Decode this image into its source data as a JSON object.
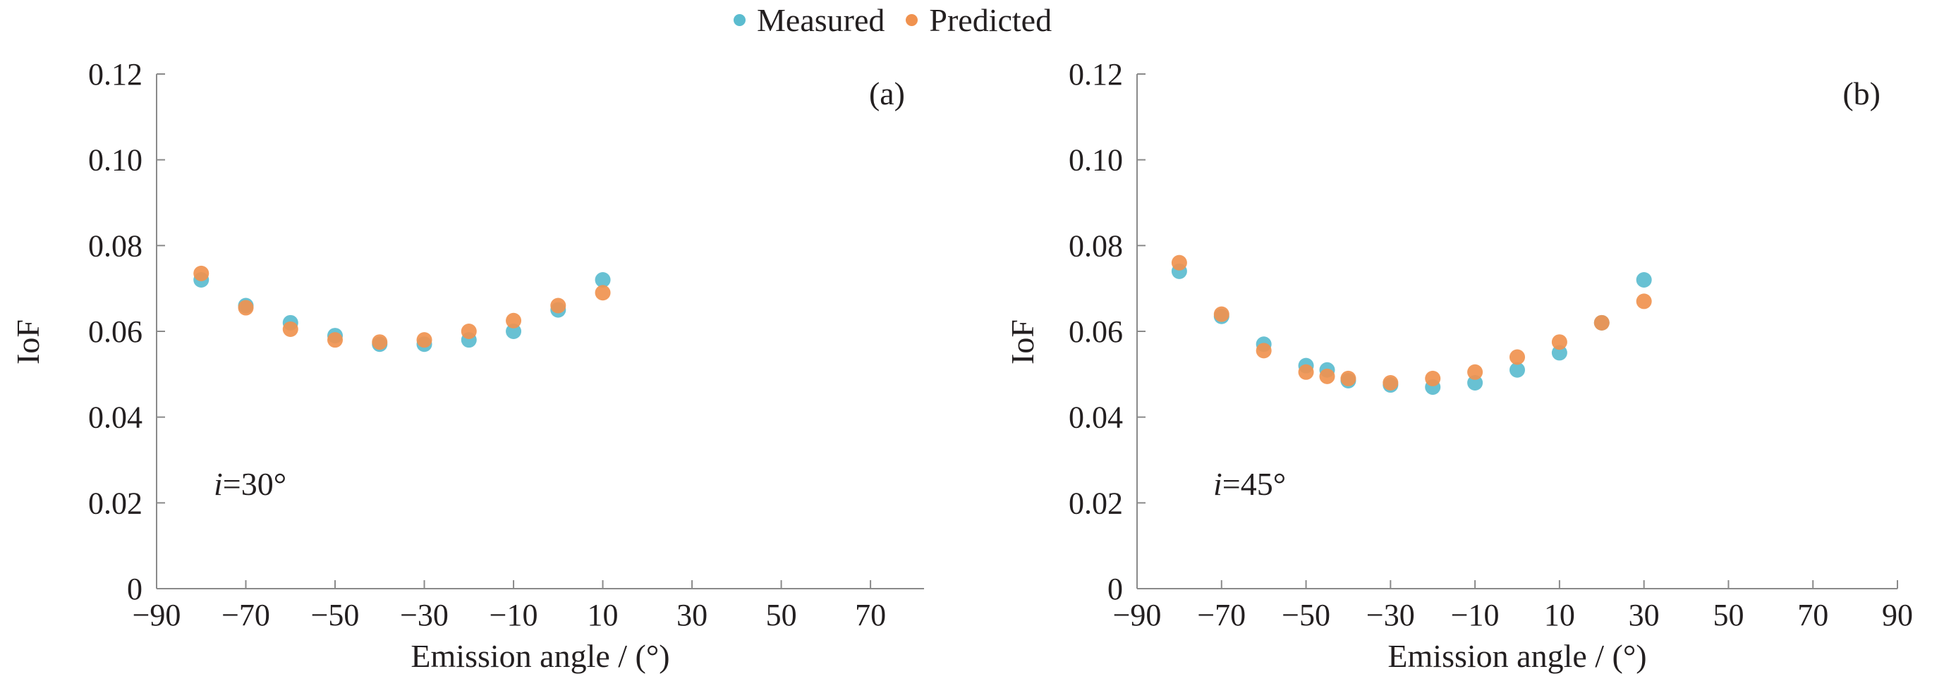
{
  "legend": {
    "measured_label": "Measured",
    "predicted_label": "Predicted",
    "measured_color": "#5bbccf",
    "predicted_color": "#f0924f"
  },
  "chart_data": [
    {
      "type": "scatter",
      "panel_label": "(a)",
      "annotation": {
        "var": "i",
        "text": "=30°"
      },
      "xlabel": "Emission angle / (°)",
      "ylabel": "IoF",
      "xlim": [
        -90,
        82
      ],
      "ylim": [
        0,
        0.12
      ],
      "xticks": [
        "−90",
        "−70",
        "−50",
        "−30",
        "−10",
        "10",
        "30",
        "50",
        "70"
      ],
      "xtick_values": [
        -90,
        -70,
        -50,
        -30,
        -10,
        10,
        30,
        50,
        70
      ],
      "yticks": [
        "0",
        "0.02",
        "0.04",
        "0.06",
        "0.08",
        "0.10",
        "0.12"
      ],
      "ytick_values": [
        0,
        0.02,
        0.04,
        0.06,
        0.08,
        0.1,
        0.12
      ],
      "grid": false,
      "legend_position": "top-center",
      "series": [
        {
          "name": "Measured",
          "x": [
            -80,
            -70,
            -60,
            -50,
            -40,
            -30,
            -20,
            -10,
            0,
            10
          ],
          "y": [
            0.072,
            0.066,
            0.062,
            0.059,
            0.057,
            0.057,
            0.058,
            0.06,
            0.065,
            0.072
          ]
        },
        {
          "name": "Predicted",
          "x": [
            -80,
            -70,
            -60,
            -50,
            -40,
            -30,
            -20,
            -10,
            0,
            10
          ],
          "y": [
            0.0735,
            0.0655,
            0.0605,
            0.058,
            0.0575,
            0.058,
            0.06,
            0.0625,
            0.066,
            0.069
          ]
        }
      ]
    },
    {
      "type": "scatter",
      "panel_label": "(b)",
      "annotation": {
        "var": "i",
        "text": "=45°"
      },
      "xlabel": "Emission angle / (°)",
      "ylabel": "IoF",
      "xlim": [
        -90,
        90
      ],
      "ylim": [
        0,
        0.12
      ],
      "xticks": [
        "−90",
        "−70",
        "−50",
        "−30",
        "−10",
        "10",
        "30",
        "50",
        "70",
        "90"
      ],
      "xtick_values": [
        -90,
        -70,
        -50,
        -30,
        -10,
        10,
        30,
        50,
        70,
        90
      ],
      "yticks": [
        "0",
        "0.02",
        "0.04",
        "0.06",
        "0.08",
        "0.10",
        "0.12"
      ],
      "ytick_values": [
        0,
        0.02,
        0.04,
        0.06,
        0.08,
        0.1,
        0.12
      ],
      "grid": false,
      "legend_position": "top-center",
      "series": [
        {
          "name": "Measured",
          "x": [
            -80,
            -70,
            -60,
            -50,
            -45,
            -40,
            -30,
            -20,
            -10,
            0,
            10,
            20,
            30
          ],
          "y": [
            0.074,
            0.0635,
            0.057,
            0.052,
            0.051,
            0.0485,
            0.0475,
            0.047,
            0.048,
            0.051,
            0.055,
            0.062,
            0.072
          ]
        },
        {
          "name": "Predicted",
          "x": [
            -80,
            -70,
            -60,
            -50,
            -45,
            -40,
            -30,
            -20,
            -10,
            0,
            10,
            20,
            30
          ],
          "y": [
            0.076,
            0.064,
            0.0555,
            0.0505,
            0.0495,
            0.049,
            0.048,
            0.049,
            0.0505,
            0.054,
            0.0575,
            0.062,
            0.067
          ]
        }
      ]
    }
  ]
}
